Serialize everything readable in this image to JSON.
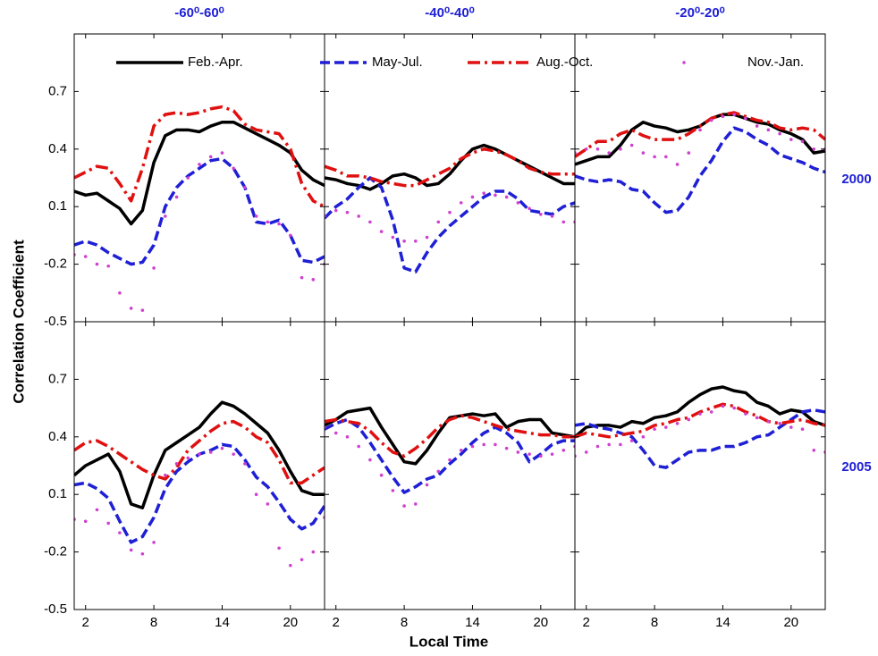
{
  "ylabel": "Correlation Coefficient",
  "xlabel": "Local Time",
  "chart_data": [
    {
      "type": "line",
      "title": "-60⁰-60⁰",
      "xlim": [
        1,
        23
      ],
      "ylim": [
        -0.5,
        1.0
      ],
      "xticks": [
        2,
        8,
        14,
        20
      ],
      "yticks": [
        -0.5,
        -0.2,
        0.1,
        0.4,
        0.7
      ],
      "x": [
        1,
        2,
        3,
        4,
        5,
        6,
        7,
        8,
        9,
        10,
        11,
        12,
        13,
        14,
        15,
        16,
        17,
        18,
        19,
        20,
        21,
        22,
        23
      ],
      "series": [
        {
          "name": "Feb.-Apr.",
          "color": "#000000",
          "linestyle": "solid",
          "values": [
            0.18,
            0.16,
            0.17,
            0.13,
            0.09,
            0.01,
            0.08,
            0.33,
            0.47,
            0.5,
            0.5,
            0.49,
            0.52,
            0.54,
            0.54,
            0.51,
            0.48,
            0.45,
            0.42,
            0.38,
            0.29,
            0.24,
            0.21
          ]
        },
        {
          "name": "May-Jul.",
          "color": "#1f1fd6",
          "linestyle": "dashed",
          "values": [
            -0.1,
            -0.08,
            -0.1,
            -0.14,
            -0.17,
            -0.2,
            -0.19,
            -0.1,
            0.1,
            0.2,
            0.26,
            0.3,
            0.34,
            0.35,
            0.3,
            0.2,
            0.02,
            0.01,
            0.03,
            -0.05,
            -0.18,
            -0.19,
            -0.16
          ]
        },
        {
          "name": "Aug.-Oct.",
          "color": "#e01010",
          "linestyle": "dashdot",
          "values": [
            0.25,
            0.28,
            0.31,
            0.3,
            0.22,
            0.13,
            0.3,
            0.52,
            0.58,
            0.59,
            0.58,
            0.59,
            0.61,
            0.62,
            0.6,
            0.53,
            0.5,
            0.49,
            0.48,
            0.4,
            0.22,
            0.13,
            0.1
          ]
        },
        {
          "name": "Nov.-Jan.",
          "color": "#d040d0",
          "linestyle": "dotted",
          "values": [
            -0.15,
            -0.16,
            -0.2,
            -0.21,
            -0.35,
            -0.43,
            -0.44,
            -0.22,
            0.05,
            0.15,
            0.25,
            0.32,
            0.36,
            0.38,
            0.3,
            0.2,
            0.05,
            0.02,
            0.01,
            -0.05,
            -0.27,
            -0.28,
            -0.2
          ]
        }
      ]
    },
    {
      "type": "line",
      "title": "-40⁰-40⁰",
      "xlim": [
        1,
        23
      ],
      "ylim": [
        -0.5,
        1.0
      ],
      "xticks": [
        2,
        8,
        14,
        20
      ],
      "yticks": [
        -0.5,
        -0.2,
        0.1,
        0.4,
        0.7
      ],
      "x": [
        1,
        2,
        3,
        4,
        5,
        6,
        7,
        8,
        9,
        10,
        11,
        12,
        13,
        14,
        15,
        16,
        17,
        18,
        19,
        20,
        21,
        22,
        23
      ],
      "series": [
        {
          "name": "Feb.-Apr.",
          "color": "#000000",
          "linestyle": "solid",
          "values": [
            0.25,
            0.24,
            0.22,
            0.21,
            0.19,
            0.22,
            0.26,
            0.27,
            0.25,
            0.21,
            0.22,
            0.27,
            0.34,
            0.4,
            0.42,
            0.4,
            0.37,
            0.34,
            0.31,
            0.28,
            0.25,
            0.22,
            0.22
          ]
        },
        {
          "name": "May-Jul.",
          "color": "#1f1fd6",
          "linestyle": "dashed",
          "values": [
            0.04,
            0.1,
            0.14,
            0.2,
            0.25,
            0.2,
            0.03,
            -0.22,
            -0.24,
            -0.14,
            -0.06,
            0.0,
            0.05,
            0.1,
            0.15,
            0.18,
            0.18,
            0.14,
            0.08,
            0.07,
            0.06,
            0.1,
            0.12
          ]
        },
        {
          "name": "Aug.-Oct.",
          "color": "#e01010",
          "linestyle": "dashdot",
          "values": [
            0.31,
            0.29,
            0.26,
            0.26,
            0.25,
            0.23,
            0.22,
            0.21,
            0.21,
            0.24,
            0.27,
            0.3,
            0.35,
            0.38,
            0.4,
            0.39,
            0.37,
            0.34,
            0.3,
            0.28,
            0.27,
            0.27,
            0.27
          ]
        },
        {
          "name": "Nov.-Jan.",
          "color": "#d040d0",
          "linestyle": "dotted",
          "values": [
            0.05,
            0.08,
            0.07,
            0.05,
            0.02,
            -0.03,
            -0.06,
            -0.08,
            -0.08,
            -0.06,
            0.02,
            0.07,
            0.12,
            0.15,
            0.17,
            0.16,
            0.15,
            0.12,
            0.09,
            0.06,
            0.05,
            0.02,
            0.02
          ]
        }
      ]
    },
    {
      "type": "line",
      "title": "-20⁰-20⁰",
      "row_label": "2000",
      "xlim": [
        1,
        23
      ],
      "ylim": [
        -0.5,
        1.0
      ],
      "xticks": [
        2,
        8,
        14,
        20
      ],
      "yticks": [
        -0.5,
        -0.2,
        0.1,
        0.4,
        0.7
      ],
      "x": [
        1,
        2,
        3,
        4,
        5,
        6,
        7,
        8,
        9,
        10,
        11,
        12,
        13,
        14,
        15,
        16,
        17,
        18,
        19,
        20,
        21,
        22,
        23
      ],
      "series": [
        {
          "name": "Feb.-Apr.",
          "color": "#000000",
          "linestyle": "solid",
          "values": [
            0.32,
            0.34,
            0.36,
            0.36,
            0.42,
            0.5,
            0.54,
            0.52,
            0.51,
            0.49,
            0.5,
            0.52,
            0.56,
            0.58,
            0.58,
            0.56,
            0.54,
            0.53,
            0.5,
            0.48,
            0.45,
            0.38,
            0.39
          ]
        },
        {
          "name": "May-Jul.",
          "color": "#1f1fd6",
          "linestyle": "dashed",
          "values": [
            0.26,
            0.24,
            0.23,
            0.24,
            0.23,
            0.19,
            0.18,
            0.12,
            0.07,
            0.08,
            0.15,
            0.26,
            0.34,
            0.44,
            0.51,
            0.49,
            0.45,
            0.42,
            0.37,
            0.35,
            0.33,
            0.3,
            0.28
          ]
        },
        {
          "name": "Aug.-Oct.",
          "color": "#e01010",
          "linestyle": "dashdot",
          "values": [
            0.36,
            0.4,
            0.44,
            0.44,
            0.48,
            0.5,
            0.47,
            0.45,
            0.45,
            0.45,
            0.48,
            0.52,
            0.56,
            0.58,
            0.59,
            0.57,
            0.55,
            0.54,
            0.51,
            0.5,
            0.51,
            0.5,
            0.45
          ]
        },
        {
          "name": "Nov.-Jan.",
          "color": "#d040d0",
          "linestyle": "dotted",
          "values": [
            0.38,
            0.4,
            0.4,
            0.38,
            0.4,
            0.42,
            0.38,
            0.36,
            0.36,
            0.32,
            0.38,
            0.5,
            0.55,
            0.57,
            0.58,
            0.56,
            0.52,
            0.5,
            0.48,
            0.45,
            0.44,
            0.4,
            0.4
          ]
        }
      ]
    },
    {
      "type": "line",
      "xlim": [
        1,
        23
      ],
      "ylim": [
        -0.5,
        1.0
      ],
      "xticks": [
        2,
        8,
        14,
        20
      ],
      "yticks": [
        -0.5,
        -0.2,
        0.1,
        0.4,
        0.7
      ],
      "x": [
        1,
        2,
        3,
        4,
        5,
        6,
        7,
        8,
        9,
        10,
        11,
        12,
        13,
        14,
        15,
        16,
        17,
        18,
        19,
        20,
        21,
        22,
        23
      ],
      "series": [
        {
          "name": "Feb.-Apr.",
          "color": "#000000",
          "linestyle": "solid",
          "values": [
            0.2,
            0.25,
            0.28,
            0.31,
            0.22,
            0.05,
            0.03,
            0.2,
            0.33,
            0.37,
            0.41,
            0.45,
            0.52,
            0.58,
            0.56,
            0.52,
            0.47,
            0.42,
            0.33,
            0.22,
            0.12,
            0.1,
            0.1
          ]
        },
        {
          "name": "May-Jul.",
          "color": "#1f1fd6",
          "linestyle": "dashed",
          "values": [
            0.15,
            0.16,
            0.13,
            0.08,
            -0.04,
            -0.15,
            -0.12,
            -0.02,
            0.13,
            0.22,
            0.27,
            0.31,
            0.33,
            0.36,
            0.35,
            0.28,
            0.19,
            0.14,
            0.06,
            -0.03,
            -0.08,
            -0.05,
            0.04
          ]
        },
        {
          "name": "Aug.-Oct.",
          "color": "#e01010",
          "linestyle": "dashdot",
          "values": [
            0.33,
            0.37,
            0.38,
            0.35,
            0.31,
            0.27,
            0.23,
            0.2,
            0.18,
            0.24,
            0.33,
            0.38,
            0.43,
            0.47,
            0.48,
            0.45,
            0.4,
            0.37,
            0.28,
            0.16,
            0.16,
            0.2,
            0.24
          ]
        },
        {
          "name": "Nov.-Jan.",
          "color": "#d040d0",
          "linestyle": "dotted",
          "values": [
            -0.03,
            -0.04,
            0.02,
            -0.05,
            -0.1,
            -0.19,
            -0.21,
            -0.15,
            0.2,
            0.26,
            0.29,
            0.31,
            0.32,
            0.34,
            0.31,
            0.26,
            0.1,
            0.05,
            -0.18,
            -0.27,
            -0.24,
            -0.2,
            -0.02
          ]
        }
      ]
    },
    {
      "type": "line",
      "xlim": [
        1,
        23
      ],
      "ylim": [
        -0.5,
        1.0
      ],
      "xticks": [
        2,
        8,
        14,
        20
      ],
      "yticks": [
        -0.5,
        -0.2,
        0.1,
        0.4,
        0.7
      ],
      "x": [
        1,
        2,
        3,
        4,
        5,
        6,
        7,
        8,
        9,
        10,
        11,
        12,
        13,
        14,
        15,
        16,
        17,
        18,
        19,
        20,
        21,
        22,
        23
      ],
      "series": [
        {
          "name": "Feb.-Apr.",
          "color": "#000000",
          "linestyle": "solid",
          "values": [
            0.46,
            0.49,
            0.53,
            0.54,
            0.55,
            0.45,
            0.36,
            0.27,
            0.26,
            0.33,
            0.42,
            0.5,
            0.51,
            0.52,
            0.51,
            0.52,
            0.45,
            0.48,
            0.49,
            0.49,
            0.42,
            0.41,
            0.4
          ]
        },
        {
          "name": "May-Jul.",
          "color": "#1f1fd6",
          "linestyle": "dashed",
          "values": [
            0.44,
            0.47,
            0.49,
            0.45,
            0.37,
            0.28,
            0.19,
            0.11,
            0.14,
            0.18,
            0.2,
            0.26,
            0.31,
            0.37,
            0.42,
            0.45,
            0.42,
            0.37,
            0.27,
            0.31,
            0.36,
            0.38,
            0.38
          ]
        },
        {
          "name": "Aug.-Oct.",
          "color": "#e01010",
          "linestyle": "dashdot",
          "values": [
            0.48,
            0.49,
            0.48,
            0.47,
            0.43,
            0.37,
            0.32,
            0.3,
            0.34,
            0.39,
            0.45,
            0.49,
            0.51,
            0.5,
            0.48,
            0.46,
            0.44,
            0.43,
            0.42,
            0.41,
            0.41,
            0.4,
            0.4
          ]
        },
        {
          "name": "Nov.-Jan.",
          "color": "#d040d0",
          "linestyle": "dotted",
          "values": [
            0.45,
            0.42,
            0.4,
            0.35,
            0.28,
            0.2,
            0.12,
            0.04,
            0.05,
            0.15,
            0.22,
            0.28,
            0.33,
            0.35,
            0.36,
            0.36,
            0.34,
            0.32,
            0.31,
            0.3,
            0.31,
            0.33,
            0.35
          ]
        }
      ]
    },
    {
      "type": "line",
      "row_label": "2005",
      "xlim": [
        1,
        23
      ],
      "ylim": [
        -0.5,
        1.0
      ],
      "xticks": [
        2,
        8,
        14,
        20
      ],
      "yticks": [
        -0.5,
        -0.2,
        0.1,
        0.4,
        0.7
      ],
      "x": [
        1,
        2,
        3,
        4,
        5,
        6,
        7,
        8,
        9,
        10,
        11,
        12,
        13,
        14,
        15,
        16,
        17,
        18,
        19,
        20,
        21,
        22,
        23
      ],
      "series": [
        {
          "name": "Feb.-Apr.",
          "color": "#000000",
          "linestyle": "solid",
          "values": [
            0.4,
            0.45,
            0.46,
            0.46,
            0.45,
            0.48,
            0.47,
            0.5,
            0.51,
            0.53,
            0.58,
            0.62,
            0.65,
            0.66,
            0.64,
            0.63,
            0.58,
            0.56,
            0.52,
            0.54,
            0.53,
            0.48,
            0.46
          ]
        },
        {
          "name": "May-Jul.",
          "color": "#1f1fd6",
          "linestyle": "dashed",
          "values": [
            0.46,
            0.47,
            0.45,
            0.44,
            0.42,
            0.4,
            0.33,
            0.25,
            0.24,
            0.28,
            0.32,
            0.33,
            0.33,
            0.35,
            0.35,
            0.37,
            0.4,
            0.41,
            0.45,
            0.49,
            0.53,
            0.54,
            0.53
          ]
        },
        {
          "name": "Aug.-Oct.",
          "color": "#e01010",
          "linestyle": "dashdot",
          "values": [
            0.4,
            0.42,
            0.41,
            0.4,
            0.41,
            0.42,
            0.43,
            0.46,
            0.47,
            0.49,
            0.5,
            0.53,
            0.55,
            0.57,
            0.56,
            0.53,
            0.51,
            0.48,
            0.47,
            0.48,
            0.49,
            0.47,
            0.46
          ]
        },
        {
          "name": "Nov.-Jan.",
          "color": "#d040d0",
          "linestyle": "dotted",
          "values": [
            0.3,
            0.32,
            0.35,
            0.36,
            0.36,
            0.38,
            0.4,
            0.44,
            0.45,
            0.47,
            0.49,
            0.52,
            0.53,
            0.56,
            0.55,
            0.52,
            0.5,
            0.48,
            0.47,
            0.45,
            0.44,
            0.33,
            0.32
          ]
        }
      ]
    }
  ]
}
